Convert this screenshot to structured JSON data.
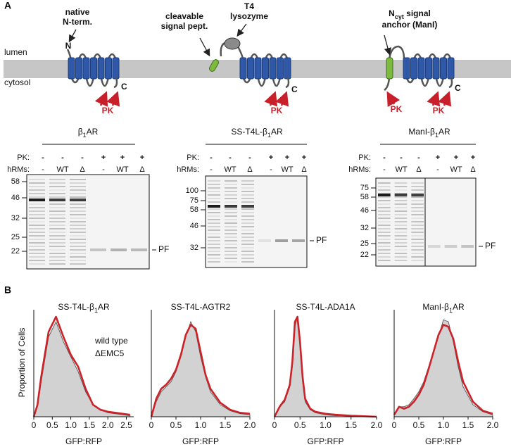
{
  "panel_a": {
    "label": "A",
    "lumen": "lumen",
    "cytosol": "cytosol",
    "topology": [
      {
        "labels": [
          "native",
          "N-term."
        ],
        "n": "N",
        "c": "C",
        "pk": [
          "PK"
        ]
      },
      {
        "labels": [
          "cleavable",
          "signal pept."
        ],
        "labels2": [
          "T4",
          "lysozyme"
        ],
        "c": "C",
        "pk": [
          "PK"
        ]
      },
      {
        "labels": [
          {
            "pre": "N",
            "sub": "cyt",
            "post": " signal"
          },
          "anchor (ManI)"
        ],
        "c": "C",
        "pk": [
          "PK",
          "PK"
        ]
      }
    ],
    "gels": [
      {
        "title": {
          "pre": "β",
          "sub": "1",
          "post": "AR"
        },
        "row_labels": [
          "PK:",
          "hRMs:"
        ],
        "pk": [
          "-",
          "-",
          "-",
          "+",
          "+",
          "+"
        ],
        "hrms": [
          "-",
          "WT",
          "Δ",
          "-",
          "WT",
          "Δ"
        ],
        "markers": [
          58,
          46,
          32,
          25,
          22
        ],
        "band_label": "PF"
      },
      {
        "title": {
          "pre": "SS-T4L-β",
          "sub": "1",
          "post": "AR"
        },
        "row_labels": [
          "PK:",
          "hRMs:"
        ],
        "pk": [
          "-",
          "-",
          "-",
          "+",
          "+",
          "+"
        ],
        "hrms": [
          "-",
          "WT",
          "Δ",
          "-",
          "WT",
          "Δ"
        ],
        "markers": [
          100,
          75,
          58,
          46,
          32
        ],
        "band_label": "PF"
      },
      {
        "title": {
          "pre": "ManI-β",
          "sub": "1",
          "post": "AR"
        },
        "row_labels": [
          "PK:",
          "hRMs:"
        ],
        "pk": [
          "-",
          "-",
          "-",
          "+",
          "+",
          "+"
        ],
        "hrms": [
          "-",
          "WT",
          "Δ",
          "-",
          "WT",
          "Δ"
        ],
        "markers": [
          75,
          58,
          46,
          32,
          25,
          22
        ],
        "band_label": "PF"
      }
    ]
  },
  "panel_b_label": "B",
  "chart_data": [
    {
      "type": "area",
      "title": {
        "pre": "SS-T4L-β",
        "sub": "1",
        "post": "AR"
      },
      "x_label": "GFP:RFP",
      "y_label": "Proportion of Cells",
      "x": [
        0,
        0.1,
        0.2,
        0.4,
        0.6,
        0.8,
        1.0,
        1.2,
        1.4,
        1.6,
        1.8,
        2.0,
        2.2,
        2.4,
        2.6
      ],
      "series": [
        {
          "name": "wild type",
          "color": "#d2d2d2",
          "values": [
            0,
            0.1,
            0.35,
            0.8,
            0.95,
            0.75,
            0.6,
            0.45,
            0.25,
            0.12,
            0.07,
            0.04,
            0.03,
            0.02,
            0.01
          ]
        },
        {
          "name": "ΔEMC5",
          "color": "#cc2229",
          "values": [
            0,
            0.12,
            0.4,
            0.85,
            1.0,
            0.8,
            0.62,
            0.5,
            0.28,
            0.12,
            0.07,
            0.05,
            0.04,
            0.03,
            0.02
          ]
        }
      ],
      "xlim": [
        0,
        2.7
      ],
      "ylim": [
        0,
        1
      ],
      "xticks": [
        0,
        0.5,
        {
          "value": 1,
          "label": "1.0"
        },
        1.5,
        {
          "value": 2,
          "label": "2.0"
        },
        2.5
      ]
    },
    {
      "type": "area",
      "title": {
        "pre": "SS-T4L-AGTR2"
      },
      "x_label": "GFP:RFP",
      "x": [
        0,
        0.1,
        0.2,
        0.3,
        0.4,
        0.5,
        0.6,
        0.7,
        0.8,
        0.9,
        1.0,
        1.1,
        1.2,
        1.4,
        1.6,
        1.8,
        2.0
      ],
      "series": [
        {
          "color": "#d2d2d2",
          "values": [
            0,
            0.15,
            0.25,
            0.3,
            0.35,
            0.45,
            0.6,
            0.8,
            0.95,
            0.85,
            0.6,
            0.4,
            0.25,
            0.12,
            0.06,
            0.03,
            0.02
          ]
        },
        {
          "color": "#cc2229",
          "values": [
            0,
            0.18,
            0.28,
            0.32,
            0.38,
            0.47,
            0.62,
            0.82,
            0.92,
            0.88,
            0.65,
            0.42,
            0.28,
            0.14,
            0.07,
            0.04,
            0.03
          ]
        }
      ],
      "xlim": [
        0,
        2.0
      ],
      "ylim": [
        0,
        1
      ],
      "xticks": [
        0,
        0.5,
        {
          "value": 1,
          "label": "1.0"
        },
        1.5,
        {
          "value": 2,
          "label": "2.0"
        }
      ]
    },
    {
      "type": "area",
      "title": {
        "pre": "SS-T4L-ADA1A"
      },
      "x_label": "GFP:RFP",
      "x": [
        0,
        0.1,
        0.2,
        0.3,
        0.35,
        0.4,
        0.45,
        0.5,
        0.55,
        0.6,
        0.7,
        0.8,
        1.0,
        1.2,
        1.5,
        2.0
      ],
      "series": [
        {
          "color": "#d2d2d2",
          "values": [
            0,
            0.1,
            0.15,
            0.3,
            0.5,
            0.9,
            1.0,
            0.7,
            0.35,
            0.15,
            0.07,
            0.04,
            0.02,
            0.01,
            0.01,
            0
          ]
        },
        {
          "color": "#cc2229",
          "values": [
            0,
            0.1,
            0.17,
            0.32,
            0.55,
            0.95,
            1.0,
            0.75,
            0.4,
            0.18,
            0.08,
            0.05,
            0.03,
            0.02,
            0.01,
            0
          ]
        }
      ],
      "xlim": [
        0,
        2.0
      ],
      "ylim": [
        0,
        1
      ],
      "xticks": [
        0,
        0.5,
        {
          "value": 1,
          "label": "1.0"
        },
        1.5,
        {
          "value": 2,
          "label": "2.0"
        }
      ]
    },
    {
      "type": "area",
      "title": {
        "pre": "ManI-β",
        "sub": "1",
        "post": "AR"
      },
      "x_label": "GFP:RFP",
      "x": [
        0,
        0.1,
        0.2,
        0.3,
        0.4,
        0.5,
        0.6,
        0.7,
        0.8,
        0.9,
        1.0,
        1.1,
        1.2,
        1.3,
        1.4,
        1.6,
        1.8,
        2.0
      ],
      "series": [
        {
          "color": "#d2d2d2",
          "values": [
            0.02,
            0.1,
            0.1,
            0.12,
            0.18,
            0.25,
            0.35,
            0.5,
            0.65,
            0.8,
            0.97,
            0.95,
            0.75,
            0.5,
            0.3,
            0.12,
            0.05,
            0.02
          ]
        },
        {
          "color": "#cc2229",
          "values": [
            0.02,
            0.1,
            0.08,
            0.1,
            0.15,
            0.22,
            0.32,
            0.48,
            0.65,
            0.82,
            0.92,
            0.9,
            0.78,
            0.55,
            0.35,
            0.15,
            0.06,
            0.03
          ]
        }
      ],
      "xlim": [
        0,
        2.0
      ],
      "ylim": [
        0,
        1
      ],
      "xticks": [
        0,
        0.5,
        {
          "value": 1,
          "label": "1.0"
        },
        1.5,
        {
          "value": 2,
          "label": "2.0"
        }
      ]
    }
  ]
}
